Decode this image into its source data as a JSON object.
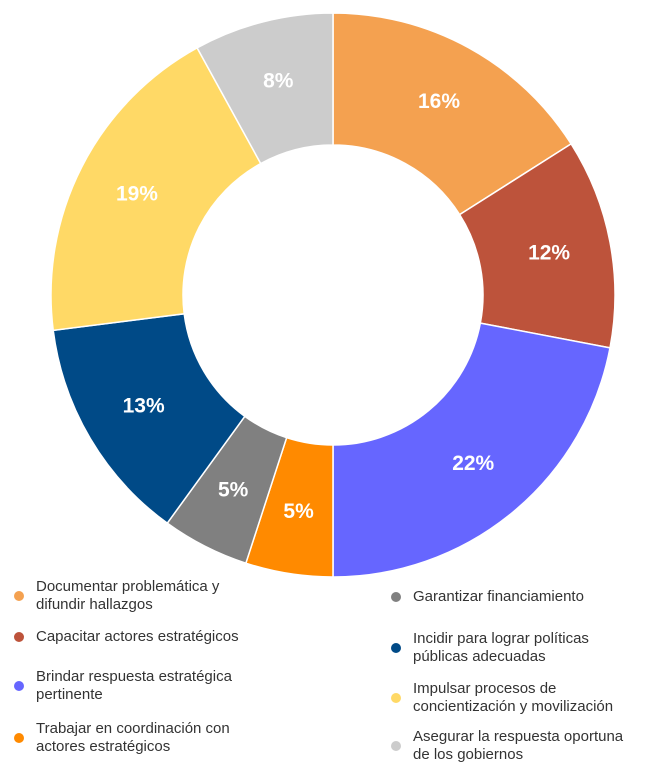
{
  "chart_data": {
    "type": "donut",
    "categories": [
      "Documentar problemática y difundir hallazgos",
      "Capacitar actores estratégicos",
      "Brindar respuesta estratégica pertinente",
      "Trabajar en coordinación con actores estratégicos",
      "Garantizar financiamiento",
      "Incidir para lograr políticas públicas adecuadas",
      "Impulsar procesos de concientización y movilización",
      "Asegurar la respuesta oportuna de los gobiernos"
    ],
    "values": [
      16,
      12,
      22,
      5,
      5,
      13,
      19,
      8
    ],
    "value_labels": [
      "16%",
      "12%",
      "22%",
      "5%",
      "5%",
      "13%",
      "19%",
      "8%"
    ],
    "colors": [
      "#F4A150",
      "#BD533B",
      "#6666FF",
      "#FF8A00",
      "#808080",
      "#004A87",
      "#FFD966",
      "#CCCCCC"
    ]
  }
}
